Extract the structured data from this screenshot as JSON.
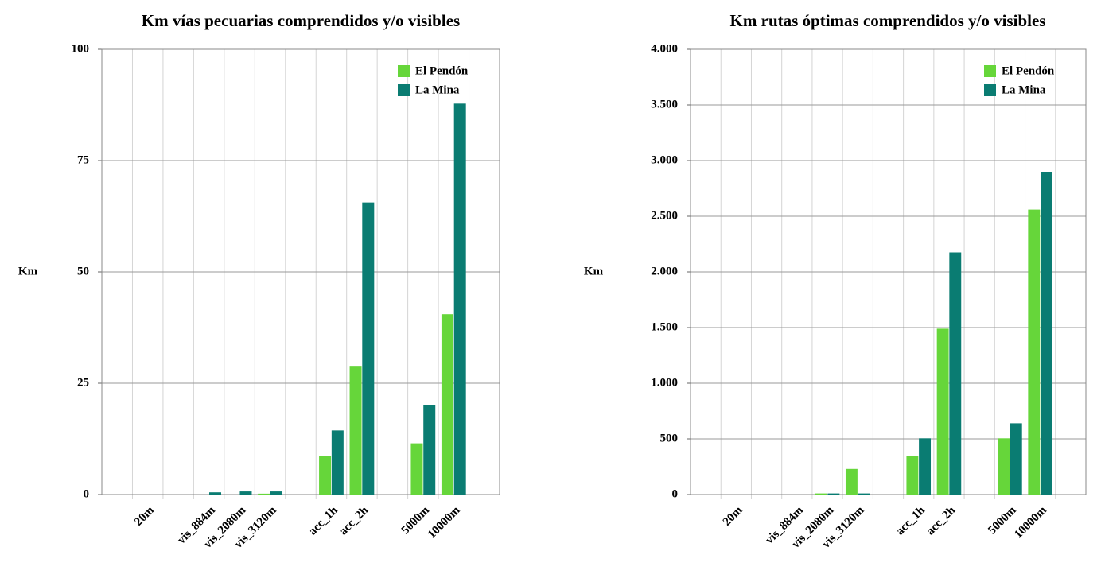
{
  "chart_data": [
    {
      "type": "bar",
      "title": "Km vías pecuarias comprendidos y/o visibles",
      "y_label": "Km",
      "categories": [
        null,
        "20m",
        null,
        "vis_884m",
        "vis_2080m",
        "vis_3120m",
        null,
        "acc_1h",
        "acc_2h",
        null,
        "5000m",
        "10000m",
        null
      ],
      "series": [
        {
          "name": "El Pendón",
          "color": "#66d63a",
          "values": [
            null,
            0,
            null,
            0,
            0,
            0.2,
            null,
            8.7,
            28.9,
            null,
            11.5,
            40.5,
            null
          ]
        },
        {
          "name": "La Mina",
          "color": "#0a7c72",
          "values": [
            null,
            0,
            null,
            0.5,
            0.7,
            0.7,
            null,
            14.4,
            65.6,
            null,
            20.1,
            87.8,
            null
          ]
        }
      ],
      "ylim": [
        0,
        100
      ],
      "yticks": [
        0,
        25,
        50,
        75,
        100
      ],
      "grid": true,
      "legend": "upper right"
    },
    {
      "type": "bar",
      "title": "Km rutas óptimas comprendidos y/o visibles",
      "y_label": "Km",
      "categories": [
        null,
        "20m",
        null,
        "vis_884m",
        "vis_2080m",
        "vis_3120m",
        null,
        "acc_1h",
        "acc_2h",
        null,
        "5000m",
        "10000m",
        null
      ],
      "series": [
        {
          "name": "El Pendón",
          "color": "#66d63a",
          "values": [
            null,
            0,
            null,
            0,
            10,
            230,
            null,
            350,
            1490,
            null,
            505,
            2560,
            null
          ]
        },
        {
          "name": "La Mina",
          "color": "#0a7c72",
          "values": [
            null,
            0,
            null,
            0,
            10,
            10,
            null,
            505,
            2175,
            null,
            640,
            2900,
            null
          ]
        }
      ],
      "ylim": [
        0,
        4000
      ],
      "yticks": [
        0,
        500,
        {
          "value": 1000,
          "label": "1.000"
        },
        {
          "value": 1500,
          "label": "1.500"
        },
        {
          "value": 2000,
          "label": "2.000"
        },
        {
          "value": 2500,
          "label": "2.500"
        },
        {
          "value": 3000,
          "label": "3.000"
        },
        {
          "value": 3500,
          "label": "3.500"
        },
        {
          "value": 4000,
          "label": "4.000"
        }
      ],
      "grid": true,
      "legend": "upper right"
    }
  ]
}
